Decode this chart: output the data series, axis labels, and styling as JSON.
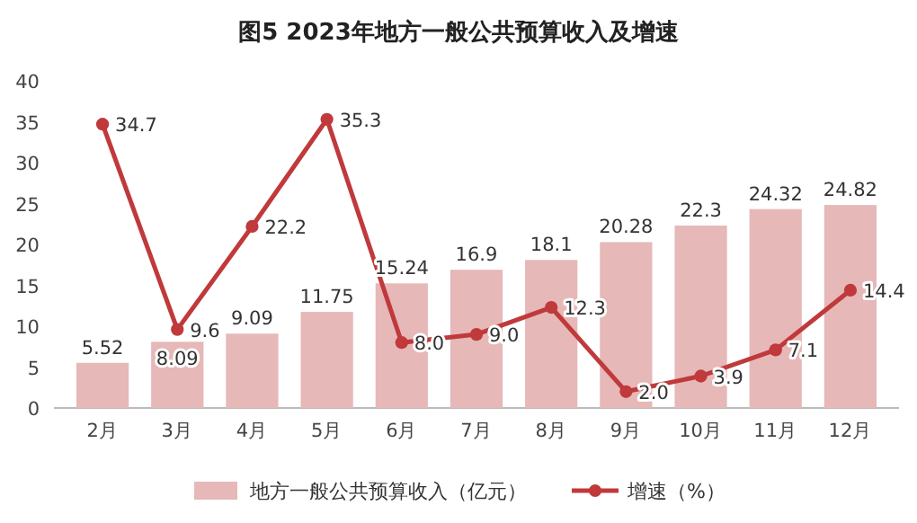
{
  "chart_data": {
    "type": "bar",
    "title": "图5  2023年地方一般公共预算收入及增速",
    "categories": [
      "2月",
      "3月",
      "4月",
      "5月",
      "6月",
      "7月",
      "8月",
      "9月",
      "10月",
      "11月",
      "12月"
    ],
    "ylim": [
      0,
      40
    ],
    "yticks": [
      0,
      5,
      10,
      15,
      20,
      25,
      30,
      35,
      40
    ],
    "data_labels": true,
    "legend": "bottom",
    "marker": "circle",
    "series": [
      {
        "name": "地方一般公共预算收入（亿元）",
        "color": "#e6b8b7",
        "values": [
          5.52,
          8.09,
          9.09,
          11.75,
          15.24,
          16.9,
          18.1,
          20.28,
          22.3,
          24.32,
          24.82
        ]
      },
      {
        "name": "增速（%）",
        "type": "line",
        "color": "#c0393b",
        "values": [
          34.7,
          9.6,
          22.2,
          35.3,
          8.0,
          9.0,
          12.3,
          2.0,
          3.9,
          7.1,
          14.4
        ],
        "value_labels": [
          "34.7",
          "9.6",
          "22.2",
          "35.3",
          "8.0",
          "9.0",
          "12.3",
          "2.0",
          "3.9",
          "7.1",
          "14.4"
        ]
      }
    ]
  }
}
